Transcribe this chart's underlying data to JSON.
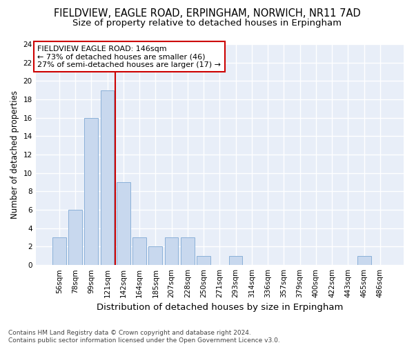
{
  "title_line1": "FIELDVIEW, EAGLE ROAD, ERPINGHAM, NORWICH, NR11 7AD",
  "title_line2": "Size of property relative to detached houses in Erpingham",
  "xlabel": "Distribution of detached houses by size in Erpingham",
  "ylabel": "Number of detached properties",
  "categories": [
    "56sqm",
    "78sqm",
    "99sqm",
    "121sqm",
    "142sqm",
    "164sqm",
    "185sqm",
    "207sqm",
    "228sqm",
    "250sqm",
    "271sqm",
    "293sqm",
    "314sqm",
    "336sqm",
    "357sqm",
    "379sqm",
    "400sqm",
    "422sqm",
    "443sqm",
    "465sqm",
    "486sqm"
  ],
  "values": [
    3,
    6,
    16,
    19,
    9,
    3,
    2,
    3,
    3,
    1,
    0,
    1,
    0,
    0,
    0,
    0,
    0,
    0,
    0,
    1,
    0
  ],
  "bar_color": "#c8d8ee",
  "bar_edge_color": "#8ab0d8",
  "ylim": [
    0,
    24
  ],
  "yticks": [
    0,
    2,
    4,
    6,
    8,
    10,
    12,
    14,
    16,
    18,
    20,
    22,
    24
  ],
  "redline_x": 3.5,
  "annotation_text": "FIELDVIEW EAGLE ROAD: 146sqm\n← 73% of detached houses are smaller (46)\n27% of semi-detached houses are larger (17) →",
  "annotation_box_color": "#ffffff",
  "annotation_box_edgecolor": "#cc0000",
  "redline_color": "#cc0000",
  "footnote": "Contains HM Land Registry data © Crown copyright and database right 2024.\nContains public sector information licensed under the Open Government Licence v3.0.",
  "background_color": "#ffffff",
  "plot_bg_color": "#e8eef8",
  "grid_color": "#ffffff",
  "title1_fontsize": 10.5,
  "title2_fontsize": 9.5,
  "ylabel_fontsize": 8.5,
  "xlabel_fontsize": 9.5,
  "tick_fontsize": 7.5,
  "annotation_fontsize": 8,
  "footnote_fontsize": 6.5
}
